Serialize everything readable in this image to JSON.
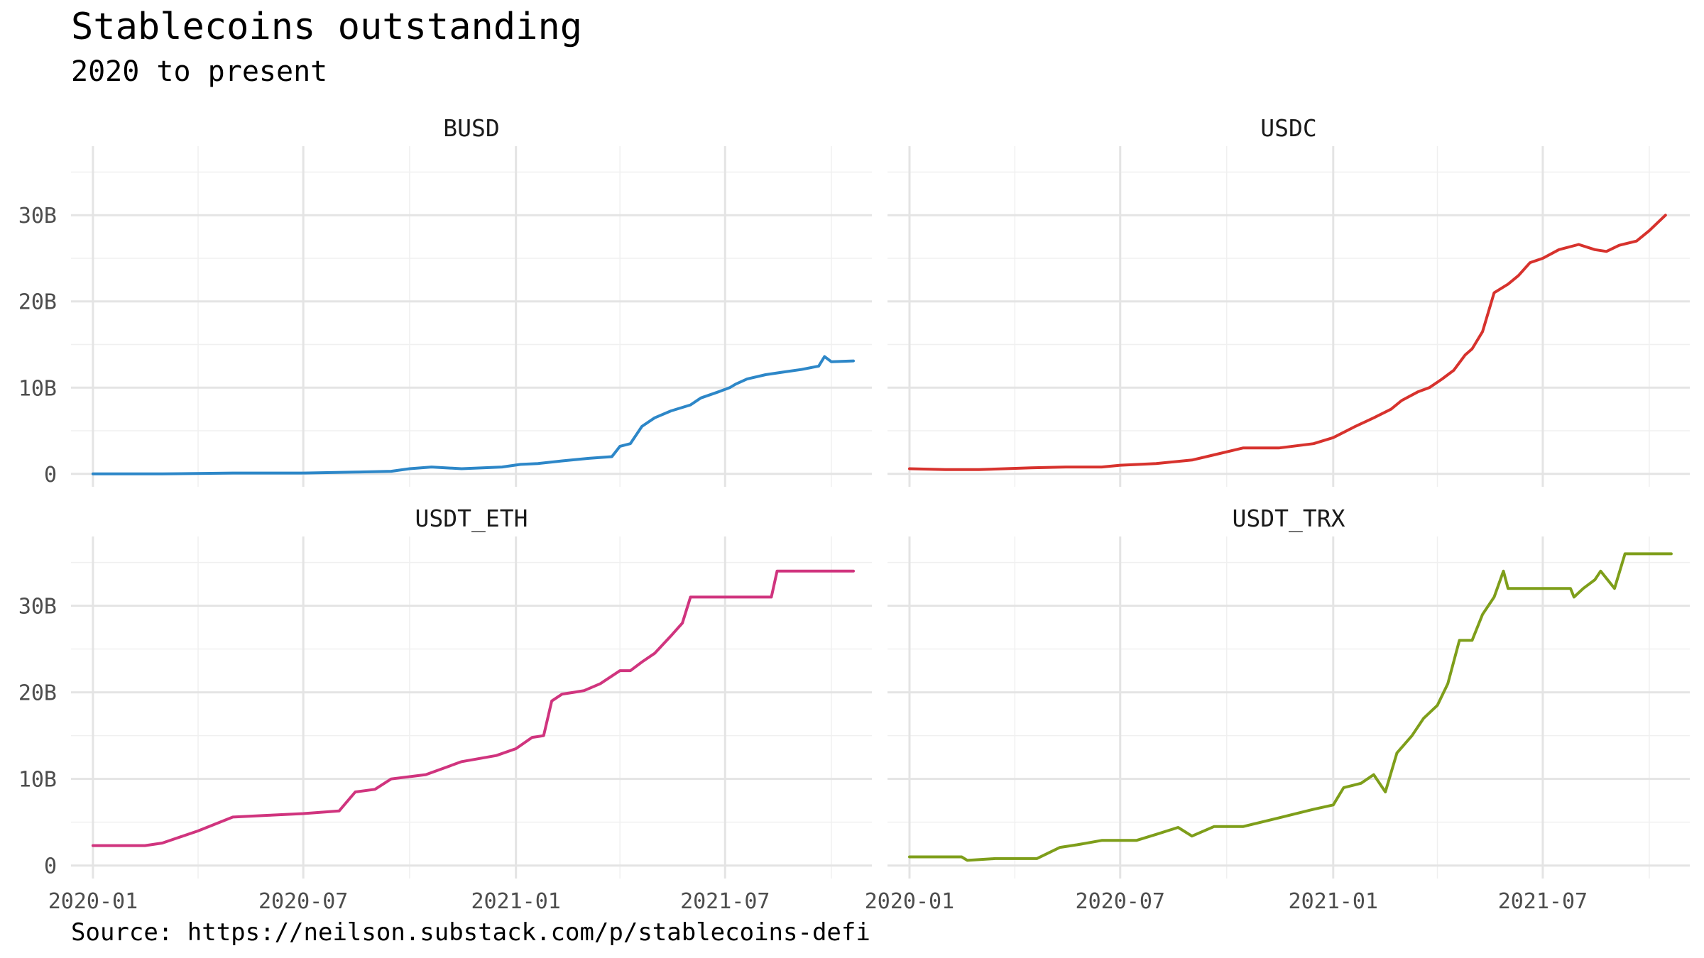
{
  "title": "Stablecoins outstanding",
  "subtitle": "2020 to present",
  "caption": "Source: https://neilson.substack.com/p/stablecoins-defi",
  "chart_data": {
    "type": "line",
    "facets": [
      "BUSD",
      "USDC",
      "USDT_ETH",
      "USDT_TRX"
    ],
    "x_ticks": [
      "2020-01",
      "2020-07",
      "2021-01",
      "2021-07"
    ],
    "y_ticks": [
      "0",
      "10B",
      "20B",
      "30B"
    ],
    "y_unit": "billions",
    "xlim": [
      "2019-12-13",
      "2021-11-05"
    ],
    "ylim": [
      -1.5,
      38
    ],
    "grid": true,
    "series": [
      {
        "name": "BUSD",
        "color": "#2D87C8",
        "x": [
          "2020-01-01",
          "2020-03-01",
          "2020-05-01",
          "2020-07-01",
          "2020-08-15",
          "2020-09-15",
          "2020-10-01",
          "2020-10-20",
          "2020-11-15",
          "2020-12-20",
          "2021-01-05",
          "2021-01-20",
          "2021-02-10",
          "2021-02-25",
          "2021-03-05",
          "2021-03-25",
          "2021-04-01",
          "2021-04-10",
          "2021-04-15",
          "2021-04-20",
          "2021-05-01",
          "2021-05-15",
          "2021-05-20",
          "2021-06-01",
          "2021-06-10",
          "2021-06-25",
          "2021-07-05",
          "2021-07-10",
          "2021-07-20",
          "2021-08-05",
          "2021-08-20",
          "2021-09-05",
          "2021-09-20",
          "2021-09-25",
          "2021-10-01",
          "2021-10-20"
        ],
        "y": [
          0.0,
          0.0,
          0.1,
          0.1,
          0.2,
          0.3,
          0.6,
          0.8,
          0.6,
          0.8,
          1.1,
          1.2,
          1.5,
          1.7,
          1.8,
          2.0,
          3.2,
          3.5,
          4.5,
          5.5,
          6.5,
          7.3,
          7.5,
          8.0,
          8.8,
          9.5,
          10.0,
          10.4,
          11.0,
          11.5,
          11.8,
          12.1,
          12.5,
          13.6,
          13.0,
          13.1
        ]
      },
      {
        "name": "USDC",
        "color": "#D7322D",
        "x": [
          "2020-01-01",
          "2020-02-01",
          "2020-03-01",
          "2020-04-15",
          "2020-05-15",
          "2020-06-15",
          "2020-07-01",
          "2020-08-01",
          "2020-09-01",
          "2020-09-20",
          "2020-10-15",
          "2020-11-15",
          "2020-12-15",
          "2021-01-01",
          "2021-01-20",
          "2021-02-05",
          "2021-02-20",
          "2021-03-01",
          "2021-03-15",
          "2021-03-25",
          "2021-04-05",
          "2021-04-15",
          "2021-04-25",
          "2021-05-01",
          "2021-05-10",
          "2021-05-20",
          "2021-06-01",
          "2021-06-10",
          "2021-06-20",
          "2021-07-01",
          "2021-07-15",
          "2021-08-01",
          "2021-08-15",
          "2021-08-25",
          "2021-09-05",
          "2021-09-20",
          "2021-10-01",
          "2021-10-15"
        ],
        "y": [
          0.6,
          0.5,
          0.5,
          0.7,
          0.8,
          0.8,
          1.0,
          1.2,
          1.6,
          2.2,
          3.0,
          3.0,
          3.5,
          4.2,
          5.5,
          6.5,
          7.5,
          8.5,
          9.5,
          10.0,
          11.0,
          12.0,
          13.8,
          14.5,
          16.5,
          21.0,
          22.0,
          23.0,
          24.5,
          25.0,
          26.0,
          26.6,
          26.0,
          25.8,
          26.5,
          27.0,
          28.2,
          30.0
        ]
      },
      {
        "name": "USDT_ETH",
        "color": "#D0347E",
        "x": [
          "2020-01-01",
          "2020-02-15",
          "2020-03-01",
          "2020-04-01",
          "2020-05-01",
          "2020-06-01",
          "2020-07-01",
          "2020-08-01",
          "2020-08-15",
          "2020-09-01",
          "2020-09-15",
          "2020-10-15",
          "2020-11-15",
          "2020-12-15",
          "2021-01-01",
          "2021-01-15",
          "2021-01-25",
          "2021-02-01",
          "2021-02-10",
          "2021-02-20",
          "2021-03-01",
          "2021-03-15",
          "2021-04-01",
          "2021-04-10",
          "2021-04-20",
          "2021-05-01",
          "2021-05-15",
          "2021-05-25",
          "2021-06-01",
          "2021-06-15",
          "2021-07-01",
          "2021-07-15",
          "2021-08-01",
          "2021-08-10",
          "2021-08-15",
          "2021-09-01",
          "2021-10-01",
          "2021-10-20"
        ],
        "y": [
          2.3,
          2.3,
          2.6,
          4.0,
          5.6,
          5.8,
          6.0,
          6.3,
          8.5,
          8.8,
          10.0,
          10.5,
          12.0,
          12.7,
          13.5,
          14.8,
          15.0,
          19.0,
          19.8,
          20.0,
          20.2,
          21.0,
          22.5,
          22.5,
          23.5,
          24.5,
          26.5,
          28.0,
          31.0,
          31.0,
          31.0,
          31.0,
          31.0,
          31.0,
          34.0,
          34.0,
          34.0,
          34.0
        ]
      },
      {
        "name": "USDT_TRX",
        "color": "#7E9E1A",
        "x": [
          "2020-01-01",
          "2020-02-15",
          "2020-02-20",
          "2020-03-15",
          "2020-04-20",
          "2020-05-10",
          "2020-05-25",
          "2020-06-15",
          "2020-07-15",
          "2020-08-01",
          "2020-08-20",
          "2020-09-01",
          "2020-09-20",
          "2020-10-15",
          "2020-11-15",
          "2020-12-15",
          "2021-01-01",
          "2021-01-10",
          "2021-01-25",
          "2021-02-05",
          "2021-02-15",
          "2021-02-25",
          "2021-03-10",
          "2021-03-20",
          "2021-04-01",
          "2021-04-10",
          "2021-04-20",
          "2021-05-01",
          "2021-05-10",
          "2021-05-20",
          "2021-05-28",
          "2021-06-01",
          "2021-06-15",
          "2021-07-01",
          "2021-07-15",
          "2021-07-25",
          "2021-07-28",
          "2021-08-05",
          "2021-08-15",
          "2021-08-20",
          "2021-09-01",
          "2021-09-10",
          "2021-10-01",
          "2021-10-20"
        ],
        "y": [
          1.0,
          1.0,
          0.6,
          0.8,
          0.8,
          2.1,
          2.4,
          2.9,
          2.9,
          3.6,
          4.4,
          3.4,
          4.5,
          4.5,
          5.5,
          6.5,
          7.0,
          9.0,
          9.5,
          10.5,
          8.5,
          13.0,
          15.0,
          17.0,
          18.5,
          21.0,
          26.0,
          26.0,
          29.0,
          31.0,
          34.0,
          32.0,
          32.0,
          32.0,
          32.0,
          32.0,
          31.0,
          32.0,
          33.0,
          34.0,
          32.0,
          36.0,
          36.0,
          36.0
        ]
      }
    ]
  }
}
